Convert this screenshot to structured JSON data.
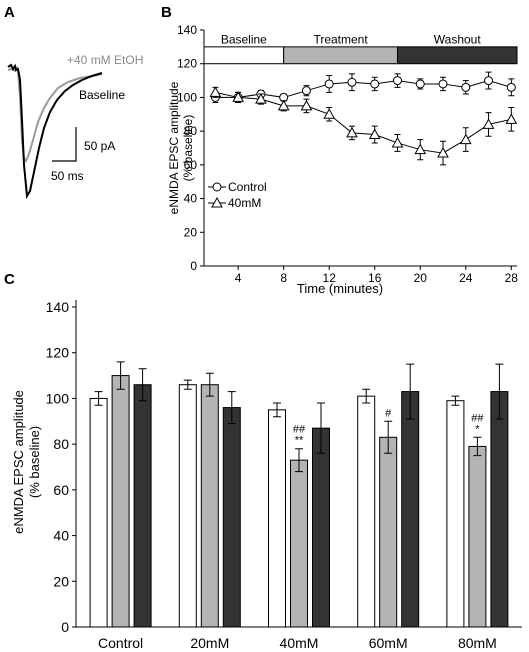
{
  "panels": {
    "A": {
      "label": "A",
      "trace_etoh_label": "+40 mM EtOH",
      "trace_baseline_label": "Baseline",
      "scale_y": "50 pA",
      "scale_x": "50 ms"
    },
    "B": {
      "label": "B"
    },
    "C": {
      "label": "C"
    }
  },
  "colors": {
    "white": "#ffffff",
    "gray": "#b4b4b4",
    "dark": "#333333",
    "etoh_trace": "#9a9a9a",
    "baseline_trace": "#000000"
  },
  "chart_data": [
    {
      "panel": "B",
      "type": "line",
      "xlabel": "Time (minutes)",
      "ylabel": "eNMDA EPSC amplitude\n(% baseline)",
      "xlim": [
        1,
        28.5
      ],
      "ylim": [
        0,
        140
      ],
      "xticks": [
        4,
        8,
        12,
        16,
        20,
        24,
        28
      ],
      "yticks": [
        0,
        20,
        40,
        60,
        80,
        100,
        120,
        140
      ],
      "phases": [
        {
          "label": "Baseline",
          "from": 1,
          "to": 8,
          "color": "#ffffff"
        },
        {
          "label": "Treatment",
          "from": 8,
          "to": 18,
          "color": "#b4b4b4"
        },
        {
          "label": "Washout",
          "from": 18,
          "to": 28.5,
          "color": "#333333"
        }
      ],
      "legend": "left",
      "series": [
        {
          "name": "Control",
          "marker": "circle",
          "x": [
            2,
            4,
            6,
            8,
            10,
            12,
            14,
            16,
            18,
            20,
            22,
            24,
            26,
            28
          ],
          "y": [
            100,
            100,
            102,
            100,
            104,
            108,
            109,
            108,
            110,
            108,
            108,
            106,
            110,
            106
          ],
          "err": [
            3,
            3,
            2,
            2,
            3,
            5,
            5,
            4,
            4,
            3,
            4,
            4,
            5,
            5
          ]
        },
        {
          "name": "40mM",
          "marker": "triangle",
          "x": [
            2,
            4,
            6,
            8,
            10,
            12,
            14,
            16,
            18,
            20,
            22,
            24,
            26,
            28
          ],
          "y": [
            103,
            100,
            99,
            95,
            95,
            90,
            79,
            78,
            73,
            69,
            67,
            75,
            84,
            87
          ],
          "err": [
            3,
            3,
            3,
            3,
            4,
            4,
            4,
            5,
            5,
            6,
            7,
            7,
            7,
            7
          ]
        }
      ]
    },
    {
      "panel": "C",
      "type": "bar",
      "ylabel": "eNMDA EPSC amplitude\n(% baseline)",
      "ylim": [
        0,
        140
      ],
      "yticks": [
        0,
        20,
        40,
        60,
        80,
        100,
        120,
        140
      ],
      "categories": [
        "Control",
        "20mM",
        "40mM",
        "60mM",
        "80mM"
      ],
      "series": [
        {
          "color": "#ffffff",
          "values": [
            100,
            106,
            95,
            101,
            99
          ],
          "err": [
            3,
            2,
            3,
            3,
            2
          ]
        },
        {
          "color": "#b4b4b4",
          "values": [
            110,
            106,
            73,
            83,
            79
          ],
          "err": [
            6,
            5,
            5,
            7,
            4
          ]
        },
        {
          "color": "#333333",
          "values": [
            106,
            96,
            87,
            103,
            103
          ],
          "err": [
            7,
            7,
            11,
            12,
            12
          ]
        }
      ],
      "annotations": [
        {
          "category": 2,
          "series": 1,
          "marks": [
            "##",
            "**"
          ]
        },
        {
          "category": 3,
          "series": 1,
          "marks": [
            "#"
          ]
        },
        {
          "category": 4,
          "series": 1,
          "marks": [
            "##",
            "*"
          ]
        }
      ]
    }
  ]
}
